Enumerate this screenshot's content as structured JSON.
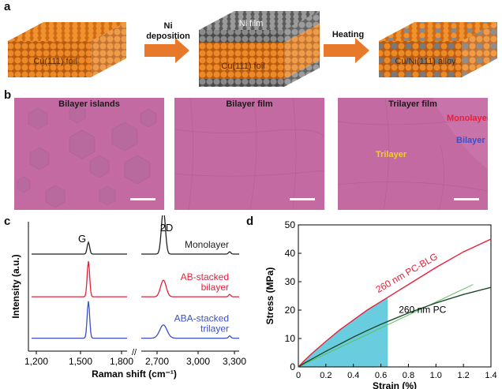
{
  "panel_a": {
    "label": "a",
    "block1_label": "Cu(111) foil",
    "arrow1_label_line1": "Ni",
    "arrow1_label_line2": "deposition",
    "block2_top_label": "Ni film",
    "block2_bottom_label": "Cu(111) foil",
    "arrow2_label": "Heating",
    "block3_label": "Cu/Ni(111) alloy",
    "colors": {
      "cu": "#e8862a",
      "ni": "#8a8a8a",
      "arrow": "#e8782a"
    }
  },
  "panel_b": {
    "label": "b",
    "images": [
      {
        "title": "Bilayer islands"
      },
      {
        "title": "Bilayer film"
      },
      {
        "title": "Trilayer film",
        "labels": [
          {
            "text": "Monolayer",
            "color": "#e8203a"
          },
          {
            "text": "Bilayer",
            "color": "#3a4fc8"
          },
          {
            "text": "Trilayer",
            "color": "#f0d020"
          }
        ]
      }
    ]
  },
  "chart_data": [
    {
      "type": "line",
      "panel": "c",
      "xlabel": "Raman shift (cm⁻¹)",
      "ylabel": "Intensity (a.u.)",
      "x_ticks_left": [
        "1,200",
        "1,500",
        "1,800"
      ],
      "x_ticks_right": [
        "2,700",
        "3,000",
        "3,300"
      ],
      "x_break": "//",
      "peak_labels": [
        "G",
        "2D"
      ],
      "series": [
        {
          "name": "Monolayer",
          "color": "#222222",
          "baseline": 0.75,
          "G": 0.25,
          "twoD": 0.95
        },
        {
          "name": "AB-stacked bilayer",
          "color": "#e8203a",
          "baseline": 0.42,
          "G": 0.75,
          "twoD": 0.35
        },
        {
          "name": "ABA-stacked trilayer",
          "color": "#3a4fc8",
          "baseline": 0.1,
          "G": 0.78,
          "twoD": 0.28
        }
      ],
      "series_label_lines": [
        [
          "Monolayer"
        ],
        [
          "AB-stacked",
          "bilayer"
        ],
        [
          "ABA-stacked",
          "trilayer"
        ]
      ]
    },
    {
      "type": "line",
      "panel": "d",
      "xlabel": "Strain (%)",
      "ylabel": "Stress (MPa)",
      "xlim": [
        0,
        1.4
      ],
      "ylim": [
        0,
        50
      ],
      "x_ticks": [
        "0",
        "0.2",
        "0.4",
        "0.6",
        "0.8",
        "1.0",
        "1.2",
        "1.4"
      ],
      "y_ticks": [
        "0",
        "10",
        "20",
        "30",
        "40",
        "50"
      ],
      "series": [
        {
          "name": "260 nm PC-BLG",
          "color": "#e8203a",
          "x": [
            0,
            0.05,
            0.1,
            0.2,
            0.3,
            0.4,
            0.5,
            0.6,
            0.65,
            0.8,
            1.0,
            1.2,
            1.4
          ],
          "y": [
            0,
            2.5,
            4.8,
            9,
            13,
            16.5,
            20,
            23,
            24.5,
            29,
            35,
            40.5,
            45
          ]
        },
        {
          "name": "260 nm PC",
          "color": "#1e4a2a",
          "x": [
            0,
            0.05,
            0.1,
            0.2,
            0.3,
            0.4,
            0.5,
            0.6,
            0.7,
            0.8,
            1.0,
            1.2,
            1.4
          ],
          "y": [
            0,
            1.5,
            2.8,
            5.5,
            8,
            10.5,
            12.8,
            15,
            17,
            19,
            22.5,
            25.5,
            28
          ]
        }
      ],
      "fit_lines": [
        {
          "color": "#5fc05f",
          "x": [
            0,
            1.27
          ],
          "y": [
            0,
            29
          ]
        }
      ],
      "shaded_region": {
        "color": "#4fc3d9",
        "x_end": 0.65
      }
    }
  ]
}
